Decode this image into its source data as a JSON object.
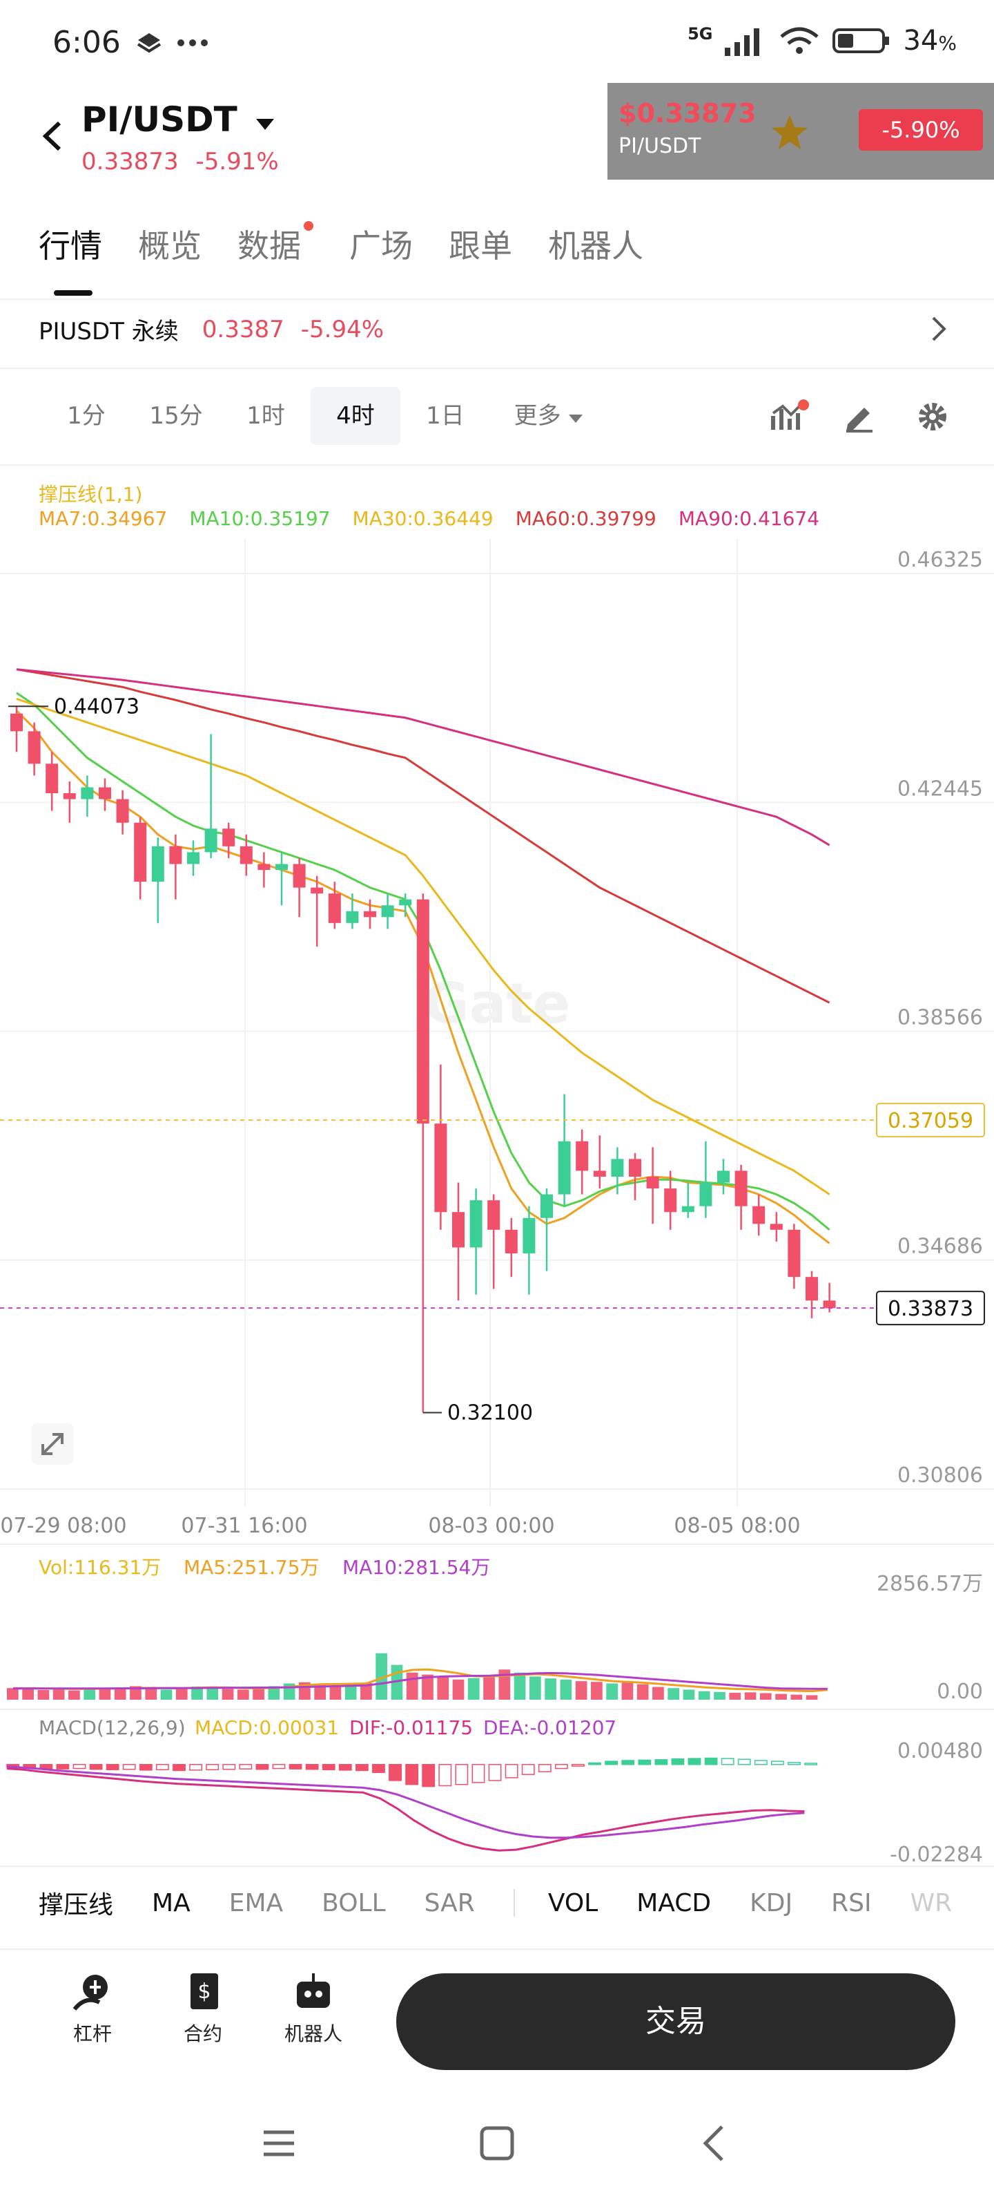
{
  "status": {
    "time": "6:06",
    "net": "5G",
    "battery": "34",
    "battery_unit": "%"
  },
  "header": {
    "pair": "PI/USDT",
    "price": "0.33873",
    "change": "-5.91%",
    "widget": {
      "price": "$0.33873",
      "pair": "PI/USDT",
      "change": "-5.90%"
    }
  },
  "tabs": [
    {
      "label": "行情"
    },
    {
      "label": "概览"
    },
    {
      "label": "数据"
    },
    {
      "label": "广场"
    },
    {
      "label": "跟单"
    },
    {
      "label": "机器人"
    }
  ],
  "perp": {
    "name": "PIUSDT 永续",
    "price": "0.3387",
    "change": "-5.94%"
  },
  "timeframes": [
    {
      "label": "1分"
    },
    {
      "label": "15分"
    },
    {
      "label": "1时"
    },
    {
      "label": "4时"
    },
    {
      "label": "1日"
    },
    {
      "label": "更多"
    }
  ],
  "legend": {
    "indicator": "撑压线(1,1)",
    "ma": [
      {
        "label": "MA7:0.34967",
        "color": "#f0a020"
      },
      {
        "label": "MA10:0.35197",
        "color": "#55d04a"
      },
      {
        "label": "MA30:0.36449",
        "color": "#e8b81c"
      },
      {
        "label": "MA60:0.39799",
        "color": "#d63a3a"
      },
      {
        "label": "MA90:0.41674",
        "color": "#d4307e"
      }
    ]
  },
  "colors": {
    "up": "#3ccf95",
    "down": "#f0506a",
    "dashed": "#e8c03a",
    "price_line": "#c040c0"
  },
  "chart_data": {
    "type": "candlestick",
    "price_axis_ticks": [
      "0.46325",
      "0.42445",
      "0.38566",
      "0.34686",
      "0.30806"
    ],
    "ylim": [
      0.30806,
      0.46325
    ],
    "time_labels": [
      "07-29 08:00",
      "07-31 16:00",
      "08-03 00:00",
      "08-05 08:00"
    ],
    "annotations": {
      "high": "0.44073",
      "low": "0.32100",
      "support": "0.37059",
      "last": "0.33873"
    },
    "candles": [
      [
        0.4395,
        0.4365,
        0.4407,
        0.433
      ],
      [
        0.4365,
        0.431,
        0.438,
        0.429
      ],
      [
        0.431,
        0.426,
        0.433,
        0.423
      ],
      [
        0.426,
        0.425,
        0.428,
        0.421
      ],
      [
        0.425,
        0.427,
        0.429,
        0.422
      ],
      [
        0.427,
        0.425,
        0.4285,
        0.423
      ],
      [
        0.425,
        0.421,
        0.4265,
        0.419
      ],
      [
        0.421,
        0.411,
        0.422,
        0.408
      ],
      [
        0.411,
        0.417,
        0.4185,
        0.404
      ],
      [
        0.417,
        0.414,
        0.419,
        0.408
      ],
      [
        0.414,
        0.416,
        0.418,
        0.412
      ],
      [
        0.416,
        0.42,
        0.436,
        0.415
      ],
      [
        0.42,
        0.417,
        0.421,
        0.415
      ],
      [
        0.417,
        0.414,
        0.419,
        0.412
      ],
      [
        0.414,
        0.413,
        0.416,
        0.41
      ],
      [
        0.413,
        0.414,
        0.416,
        0.407
      ],
      [
        0.414,
        0.41,
        0.415,
        0.405
      ],
      [
        0.41,
        0.409,
        0.412,
        0.4
      ],
      [
        0.409,
        0.404,
        0.411,
        0.403
      ],
      [
        0.404,
        0.406,
        0.409,
        0.403
      ],
      [
        0.406,
        0.405,
        0.408,
        0.403
      ],
      [
        0.405,
        0.407,
        0.409,
        0.403
      ],
      [
        0.407,
        0.408,
        0.409,
        0.405
      ],
      [
        0.408,
        0.37,
        0.409,
        0.321
      ],
      [
        0.37,
        0.355,
        0.38,
        0.352
      ],
      [
        0.355,
        0.349,
        0.36,
        0.34
      ],
      [
        0.349,
        0.357,
        0.359,
        0.341
      ],
      [
        0.357,
        0.352,
        0.358,
        0.342
      ],
      [
        0.352,
        0.348,
        0.354,
        0.344
      ],
      [
        0.348,
        0.354,
        0.356,
        0.341
      ],
      [
        0.354,
        0.358,
        0.359,
        0.345
      ],
      [
        0.358,
        0.367,
        0.375,
        0.356
      ],
      [
        0.367,
        0.362,
        0.369,
        0.358
      ],
      [
        0.362,
        0.361,
        0.368,
        0.359
      ],
      [
        0.361,
        0.364,
        0.366,
        0.358
      ],
      [
        0.364,
        0.361,
        0.365,
        0.357
      ],
      [
        0.361,
        0.359,
        0.366,
        0.353
      ],
      [
        0.359,
        0.355,
        0.362,
        0.352
      ],
      [
        0.355,
        0.356,
        0.36,
        0.354
      ],
      [
        0.356,
        0.36,
        0.367,
        0.354
      ],
      [
        0.36,
        0.362,
        0.364,
        0.358
      ],
      [
        0.362,
        0.356,
        0.363,
        0.352
      ],
      [
        0.356,
        0.353,
        0.358,
        0.351
      ],
      [
        0.353,
        0.352,
        0.355,
        0.35
      ],
      [
        0.352,
        0.344,
        0.353,
        0.342
      ],
      [
        0.344,
        0.34,
        0.345,
        0.337
      ],
      [
        0.34,
        0.3387,
        0.343,
        0.338
      ]
    ],
    "ma_lines": {
      "MA7": [
        0.44,
        0.437,
        0.433,
        0.43,
        0.427,
        0.425,
        0.424,
        0.422,
        0.419,
        0.417,
        0.4165,
        0.417,
        0.416,
        0.415,
        0.414,
        0.413,
        0.412,
        0.411,
        0.4095,
        0.408,
        0.407,
        0.4065,
        0.406,
        0.4,
        0.391,
        0.382,
        0.374,
        0.366,
        0.359,
        0.355,
        0.353,
        0.354,
        0.356,
        0.358,
        0.3595,
        0.3605,
        0.361,
        0.3608,
        0.36,
        0.3598,
        0.3596,
        0.359,
        0.358,
        0.3565,
        0.3545,
        0.352,
        0.3497
      ],
      "MA10": [
        0.443,
        0.441,
        0.438,
        0.435,
        0.432,
        0.43,
        0.428,
        0.426,
        0.424,
        0.422,
        0.4205,
        0.4195,
        0.419,
        0.418,
        0.417,
        0.416,
        0.415,
        0.414,
        0.413,
        0.4115,
        0.41,
        0.409,
        0.408,
        0.403,
        0.396,
        0.388,
        0.38,
        0.372,
        0.365,
        0.36,
        0.357,
        0.356,
        0.357,
        0.3585,
        0.3595,
        0.36,
        0.3605,
        0.3605,
        0.3603,
        0.36,
        0.3598,
        0.3595,
        0.359,
        0.358,
        0.3565,
        0.3545,
        0.352
      ],
      "MA30": [
        0.442,
        0.441,
        0.44,
        0.439,
        0.438,
        0.437,
        0.436,
        0.435,
        0.434,
        0.433,
        0.432,
        0.431,
        0.43,
        0.429,
        0.4275,
        0.426,
        0.4245,
        0.423,
        0.4215,
        0.42,
        0.4185,
        0.417,
        0.4155,
        0.412,
        0.408,
        0.404,
        0.4,
        0.396,
        0.3925,
        0.3895,
        0.387,
        0.3845,
        0.382,
        0.38,
        0.378,
        0.376,
        0.374,
        0.3725,
        0.371,
        0.3695,
        0.368,
        0.3665,
        0.365,
        0.3635,
        0.362,
        0.36,
        0.358
      ],
      "MA60": [
        0.447,
        0.4465,
        0.446,
        0.4455,
        0.445,
        0.4445,
        0.444,
        0.4432,
        0.4425,
        0.4418,
        0.441,
        0.4402,
        0.4395,
        0.4387,
        0.438,
        0.4372,
        0.4365,
        0.4357,
        0.435,
        0.4342,
        0.4335,
        0.4327,
        0.432,
        0.43,
        0.428,
        0.426,
        0.424,
        0.422,
        0.42,
        0.418,
        0.416,
        0.414,
        0.412,
        0.41,
        0.4085,
        0.407,
        0.4055,
        0.404,
        0.4025,
        0.401,
        0.3995,
        0.398,
        0.3965,
        0.395,
        0.3935,
        0.392,
        0.3905
      ],
      "MA90": [
        0.447,
        0.4467,
        0.4464,
        0.4461,
        0.4458,
        0.4455,
        0.4452,
        0.4448,
        0.4444,
        0.444,
        0.4436,
        0.4432,
        0.4428,
        0.4424,
        0.442,
        0.4416,
        0.4412,
        0.4408,
        0.4404,
        0.44,
        0.4396,
        0.4392,
        0.4388,
        0.438,
        0.4372,
        0.4364,
        0.4356,
        0.4348,
        0.434,
        0.4332,
        0.4324,
        0.4316,
        0.4308,
        0.43,
        0.4292,
        0.4284,
        0.4276,
        0.4268,
        0.426,
        0.4252,
        0.4244,
        0.4236,
        0.4228,
        0.422,
        0.4205,
        0.419,
        0.4172
      ]
    },
    "volume": {
      "legend": {
        "vol": "Vol:116.31万",
        "ma5": "MA5:251.75万",
        "ma10": "MA10:281.54万"
      },
      "ticks": [
        "2856.57万",
        "0.00"
      ],
      "ymax": 2856.57,
      "values": [
        300,
        280,
        250,
        260,
        240,
        270,
        300,
        310,
        350,
        280,
        260,
        300,
        340,
        320,
        280,
        260,
        300,
        350,
        420,
        450,
        380,
        360,
        400,
        430,
        1200,
        900,
        700,
        650,
        600,
        520,
        560,
        620,
        780,
        700,
        600,
        550,
        520,
        480,
        460,
        420,
        440,
        400,
        330,
        300,
        260,
        220,
        200,
        180,
        190,
        170,
        150,
        130,
        116
      ],
      "ma5": [
        300,
        295,
        290,
        285,
        280,
        282,
        285,
        290,
        300,
        305,
        300,
        300,
        310,
        320,
        315,
        300,
        298,
        305,
        330,
        370,
        400,
        405,
        410,
        420,
        560,
        700,
        770,
        780,
        740,
        680,
        610,
        600,
        620,
        640,
        660,
        640,
        600,
        560,
        520,
        480,
        460,
        440,
        410,
        380,
        350,
        320,
        300,
        280,
        270,
        260,
        240,
        230,
        220,
        252
      ],
      "ma10": [
        290,
        290,
        290,
        290,
        290,
        290,
        290,
        292,
        294,
        296,
        298,
        300,
        302,
        305,
        308,
        310,
        312,
        314,
        320,
        330,
        340,
        350,
        360,
        370,
        420,
        480,
        540,
        580,
        600,
        610,
        615,
        620,
        640,
        660,
        680,
        690,
        680,
        660,
        640,
        610,
        580,
        550,
        520,
        490,
        460,
        430,
        400,
        370,
        340,
        310,
        290,
        285,
        282,
        281
      ]
    },
    "macd": {
      "legend": {
        "title": "MACD(12,26,9)",
        "macd": "MACD:0.00031",
        "dif": "DIF:-0.01175",
        "dea": "DEA:-0.01207"
      },
      "ticks": [
        "0.00480",
        "-0.02284"
      ],
      "ylim": [
        -0.02284,
        0.0048
      ],
      "hist": [
        -0.0008,
        -0.0009,
        -0.001,
        -0.0011,
        -0.001,
        -0.0012,
        -0.0013,
        -0.0012,
        -0.0014,
        -0.0013,
        -0.0015,
        -0.0014,
        -0.0013,
        -0.0012,
        -0.0011,
        -0.0012,
        -0.001,
        -0.0011,
        -0.0012,
        -0.0013,
        -0.0014,
        -0.0015,
        -0.002,
        -0.004,
        -0.005,
        -0.0055,
        -0.0053,
        -0.005,
        -0.0045,
        -0.004,
        -0.0033,
        -0.0025,
        -0.0018,
        -0.001,
        -0.0004,
        0.0004,
        0.0008,
        0.001,
        0.0011,
        0.0012,
        0.0014,
        0.0015,
        0.0016,
        0.0015,
        0.0013,
        0.001,
        0.0008,
        0.0005,
        0.0003
      ],
      "dif": [
        -0.001,
        -0.0013,
        -0.0018,
        -0.0022,
        -0.0026,
        -0.003,
        -0.0034,
        -0.0038,
        -0.0042,
        -0.0045,
        -0.0048,
        -0.005,
        -0.0052,
        -0.0054,
        -0.0056,
        -0.0058,
        -0.006,
        -0.0062,
        -0.0064,
        -0.0066,
        -0.0068,
        -0.007,
        -0.0085,
        -0.011,
        -0.014,
        -0.0165,
        -0.0185,
        -0.02,
        -0.021,
        -0.0215,
        -0.0213,
        -0.0205,
        -0.0195,
        -0.0185,
        -0.0175,
        -0.0168,
        -0.016,
        -0.0152,
        -0.0145,
        -0.0138,
        -0.0132,
        -0.0127,
        -0.0123,
        -0.0119,
        -0.0115,
        -0.0114,
        -0.0116,
        -0.0117
      ],
      "dea": [
        -0.0005,
        -0.0008,
        -0.0011,
        -0.0015,
        -0.0018,
        -0.0021,
        -0.0024,
        -0.0027,
        -0.003,
        -0.0033,
        -0.0036,
        -0.0038,
        -0.004,
        -0.0042,
        -0.0044,
        -0.0046,
        -0.0048,
        -0.005,
        -0.0052,
        -0.0054,
        -0.0056,
        -0.0058,
        -0.0064,
        -0.0075,
        -0.009,
        -0.0106,
        -0.0122,
        -0.0138,
        -0.0152,
        -0.0165,
        -0.0174,
        -0.018,
        -0.0183,
        -0.0183,
        -0.0181,
        -0.0178,
        -0.0174,
        -0.017,
        -0.0166,
        -0.0161,
        -0.0156,
        -0.015,
        -0.0145,
        -0.014,
        -0.0134,
        -0.0128,
        -0.0124,
        -0.0121
      ]
    }
  },
  "indicators": [
    {
      "label": "撑压线",
      "active": true
    },
    {
      "label": "MA",
      "active": true
    },
    {
      "label": "EMA",
      "active": false
    },
    {
      "label": "BOLL",
      "active": false
    },
    {
      "label": "SAR",
      "active": false
    },
    {
      "label": "VOL",
      "active": true
    },
    {
      "label": "MACD",
      "active": true
    },
    {
      "label": "KDJ",
      "active": false
    },
    {
      "label": "RSI",
      "active": false
    },
    {
      "label": "WR",
      "active": false
    }
  ],
  "bottom": {
    "leverage": "杠杆",
    "contract": "合约",
    "bot": "机器人",
    "trade": "交易"
  },
  "watermark": "Gate"
}
